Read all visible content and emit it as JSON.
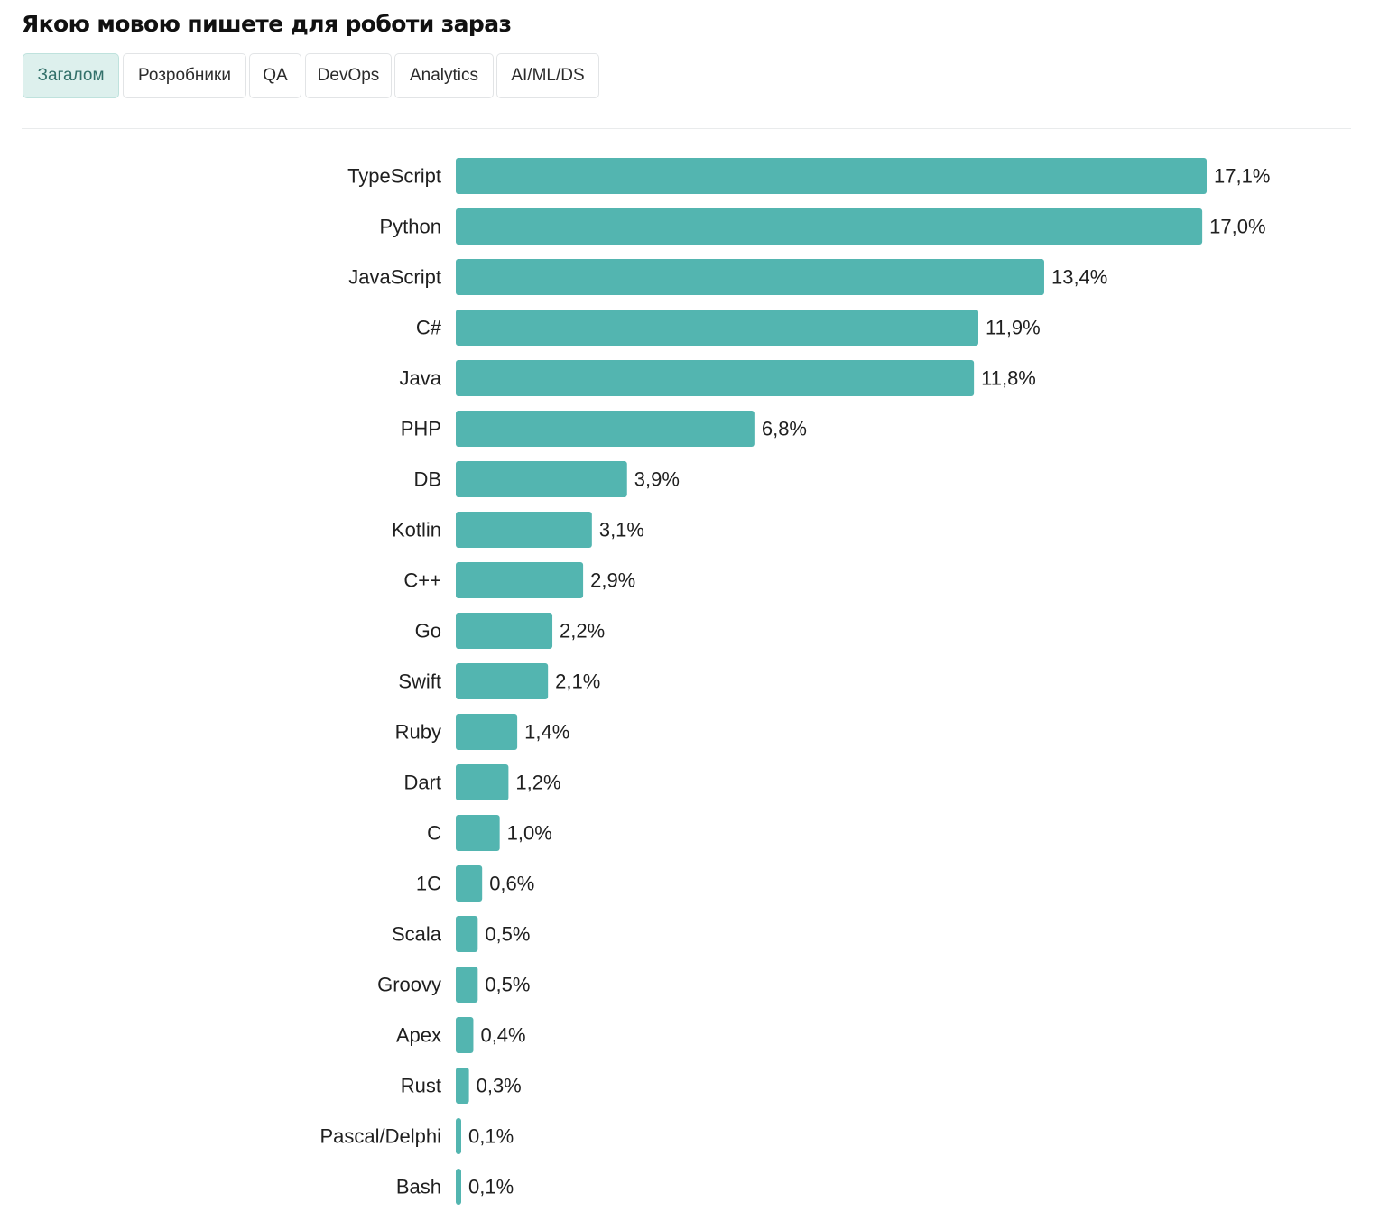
{
  "header": {
    "title": "Якою мовою пишете для роботи зараз"
  },
  "tabs": [
    {
      "label": "Загалом",
      "active": true
    },
    {
      "label": "Розробники",
      "active": false
    },
    {
      "label": "QA",
      "active": false
    },
    {
      "label": "DevOps",
      "active": false
    },
    {
      "label": "Analytics",
      "active": false
    },
    {
      "label": "AI/ML/DS",
      "active": false
    }
  ],
  "colors": {
    "bar": "#53b5b0",
    "active_tab_bg": "#ddf0ed",
    "active_tab_text": "#32706a"
  },
  "chart_data": {
    "type": "bar",
    "orientation": "horizontal",
    "title": "Якою мовою пишете для роботи зараз",
    "categories": [
      "TypeScript",
      "Python",
      "JavaScript",
      "C#",
      "Java",
      "PHP",
      "DB",
      "Kotlin",
      "C++",
      "Go",
      "Swift",
      "Ruby",
      "Dart",
      "C",
      "1C",
      "Scala",
      "Groovy",
      "Apex",
      "Rust",
      "Pascal/Delphi",
      "Bash"
    ],
    "values": [
      17.1,
      17.0,
      13.4,
      11.9,
      11.8,
      6.8,
      3.9,
      3.1,
      2.9,
      2.2,
      2.1,
      1.4,
      1.2,
      1.0,
      0.6,
      0.5,
      0.5,
      0.4,
      0.3,
      0.1,
      0.1
    ],
    "labels": [
      "17,1%",
      "17,0%",
      "13,4%",
      "11,9%",
      "11,8%",
      "6,8%",
      "3,9%",
      "3,1%",
      "2,9%",
      "2,2%",
      "2,1%",
      "1,4%",
      "1,2%",
      "1,0%",
      "0,6%",
      "0,5%",
      "0,5%",
      "0,4%",
      "0,3%",
      "0,1%",
      "0,1%"
    ],
    "unit": "%",
    "xlim": [
      0,
      17.1
    ],
    "grid": false,
    "legend": "none"
  }
}
